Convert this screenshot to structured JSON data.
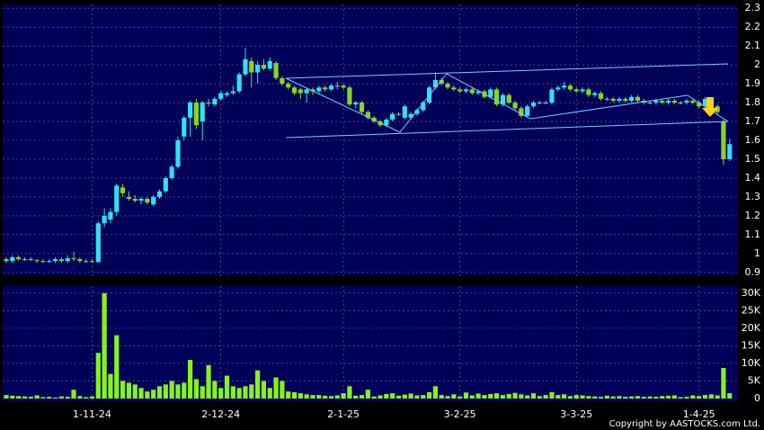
{
  "chart_data": {
    "type": "candlestick",
    "categories": [
      null,
      null,
      null,
      null,
      null,
      null,
      null,
      null,
      null,
      null,
      null,
      null,
      null,
      null,
      "1-11-24",
      null,
      null,
      null,
      null,
      null,
      null,
      null,
      null,
      null,
      null,
      null,
      null,
      null,
      null,
      null,
      null,
      null,
      null,
      null,
      null,
      "2-12-24",
      null,
      null,
      null,
      null,
      null,
      null,
      null,
      null,
      null,
      null,
      null,
      null,
      null,
      null,
      null,
      null,
      null,
      null,
      null,
      "2-1-25",
      null,
      null,
      null,
      null,
      null,
      null,
      null,
      null,
      null,
      null,
      null,
      null,
      null,
      null,
      null,
      null,
      null,
      null,
      "3-2-25",
      null,
      null,
      null,
      null,
      null,
      null,
      null,
      null,
      null,
      null,
      null,
      null,
      null,
      null,
      null,
      null,
      null,
      null,
      "3-3-25",
      null,
      null,
      null,
      null,
      null,
      null,
      null,
      null,
      null,
      null,
      null,
      null,
      null,
      null,
      null,
      null,
      null,
      null,
      null,
      "1-4-25",
      null,
      null,
      null,
      null,
      null
    ],
    "ohlc": [
      [
        0.97,
        0.98,
        0.95,
        0.96
      ],
      [
        0.96,
        0.99,
        0.95,
        0.98
      ],
      [
        0.98,
        0.99,
        0.96,
        0.97
      ],
      [
        0.97,
        0.98,
        0.96,
        0.97
      ],
      [
        0.97,
        0.98,
        0.96,
        0.965
      ],
      [
        0.965,
        0.97,
        0.95,
        0.96
      ],
      [
        0.96,
        0.97,
        0.95,
        0.955
      ],
      [
        0.955,
        0.97,
        0.95,
        0.96
      ],
      [
        0.96,
        0.98,
        0.95,
        0.97
      ],
      [
        0.97,
        0.98,
        0.95,
        0.96
      ],
      [
        0.96,
        0.99,
        0.95,
        0.975
      ],
      [
        0.975,
        1.01,
        0.96,
        0.97
      ],
      [
        0.97,
        0.98,
        0.95,
        0.96
      ],
      [
        0.96,
        0.97,
        0.95,
        0.955
      ],
      [
        0.96,
        0.97,
        0.95,
        0.955
      ],
      [
        0.955,
        1.17,
        0.95,
        1.16
      ],
      [
        1.16,
        1.24,
        1.14,
        1.2
      ],
      [
        1.18,
        1.24,
        1.16,
        1.22
      ],
      [
        1.22,
        1.37,
        1.2,
        1.36
      ],
      [
        1.35,
        1.37,
        1.3,
        1.32
      ],
      [
        1.3,
        1.33,
        1.28,
        1.29
      ],
      [
        1.29,
        1.31,
        1.27,
        1.28
      ],
      [
        1.28,
        1.3,
        1.26,
        1.29
      ],
      [
        1.29,
        1.3,
        1.26,
        1.27
      ],
      [
        1.26,
        1.31,
        1.25,
        1.3
      ],
      [
        1.3,
        1.34,
        1.29,
        1.33
      ],
      [
        1.33,
        1.41,
        1.32,
        1.4
      ],
      [
        1.4,
        1.47,
        1.39,
        1.46
      ],
      [
        1.46,
        1.62,
        1.45,
        1.6
      ],
      [
        1.62,
        1.73,
        1.6,
        1.72
      ],
      [
        1.72,
        1.81,
        1.62,
        1.8
      ],
      [
        1.8,
        1.82,
        1.66,
        1.68
      ],
      [
        1.7,
        1.81,
        1.6,
        1.8
      ],
      [
        1.8,
        1.82,
        1.78,
        1.8
      ],
      [
        1.79,
        1.83,
        1.78,
        1.82
      ],
      [
        1.82,
        1.86,
        1.81,
        1.85
      ],
      [
        1.84,
        1.86,
        1.83,
        1.85
      ],
      [
        1.85,
        1.89,
        1.84,
        1.86
      ],
      [
        1.86,
        1.96,
        1.85,
        1.95
      ],
      [
        1.95,
        2.09,
        1.94,
        2.03
      ],
      [
        2.02,
        2.04,
        1.88,
        1.96
      ],
      [
        1.96,
        2.02,
        1.9,
        2.0
      ],
      [
        2.0,
        2.03,
        1.97,
        1.98
      ],
      [
        1.98,
        2.04,
        1.97,
        2.02
      ],
      [
        2.01,
        2.02,
        1.92,
        1.93
      ],
      [
        1.93,
        1.94,
        1.89,
        1.9
      ],
      [
        1.9,
        1.91,
        1.87,
        1.88
      ],
      [
        1.88,
        1.89,
        1.84,
        1.85
      ],
      [
        1.87,
        1.88,
        1.82,
        1.85
      ],
      [
        1.85,
        1.88,
        1.8,
        1.87
      ],
      [
        1.87,
        1.88,
        1.84,
        1.86
      ],
      [
        1.86,
        1.89,
        1.85,
        1.88
      ],
      [
        1.88,
        1.89,
        1.86,
        1.87
      ],
      [
        1.87,
        1.9,
        1.86,
        1.89
      ],
      [
        1.89,
        1.91,
        1.87,
        1.89
      ],
      [
        1.89,
        1.9,
        1.87,
        1.88
      ],
      [
        1.88,
        1.89,
        1.78,
        1.79
      ],
      [
        1.79,
        1.81,
        1.77,
        1.8
      ],
      [
        1.8,
        1.81,
        1.74,
        1.75
      ],
      [
        1.75,
        1.76,
        1.71,
        1.72
      ],
      [
        1.72,
        1.73,
        1.69,
        1.7
      ],
      [
        1.7,
        1.71,
        1.67,
        1.68
      ],
      [
        1.68,
        1.72,
        1.67,
        1.71
      ],
      [
        1.71,
        1.75,
        1.7,
        1.74
      ],
      [
        1.74,
        1.75,
        1.73,
        1.74
      ],
      [
        1.72,
        1.79,
        1.71,
        1.78
      ],
      [
        1.72,
        1.75,
        1.71,
        1.74
      ],
      [
        1.74,
        1.77,
        1.73,
        1.76
      ],
      [
        1.76,
        1.81,
        1.75,
        1.8
      ],
      [
        1.8,
        1.89,
        1.79,
        1.88
      ],
      [
        1.88,
        1.96,
        1.87,
        1.92
      ],
      [
        1.92,
        1.93,
        1.89,
        1.9
      ],
      [
        1.9,
        1.91,
        1.87,
        1.88
      ],
      [
        1.88,
        1.89,
        1.86,
        1.87
      ],
      [
        1.87,
        1.88,
        1.85,
        1.86
      ],
      [
        1.86,
        1.88,
        1.85,
        1.87
      ],
      [
        1.87,
        1.88,
        1.84,
        1.85
      ],
      [
        1.85,
        1.87,
        1.84,
        1.86
      ],
      [
        1.86,
        1.87,
        1.82,
        1.83
      ],
      [
        1.83,
        1.88,
        1.82,
        1.87
      ],
      [
        1.87,
        1.88,
        1.78,
        1.79
      ],
      [
        1.79,
        1.85,
        1.78,
        1.84
      ],
      [
        1.84,
        1.85,
        1.79,
        1.8
      ],
      [
        1.8,
        1.81,
        1.76,
        1.77
      ],
      [
        1.77,
        1.78,
        1.72,
        1.73
      ],
      [
        1.73,
        1.79,
        1.72,
        1.78
      ],
      [
        1.78,
        1.81,
        1.77,
        1.8
      ],
      [
        1.8,
        1.81,
        1.79,
        1.8
      ],
      [
        1.8,
        1.81,
        1.79,
        1.8
      ],
      [
        1.8,
        1.88,
        1.79,
        1.87
      ],
      [
        1.87,
        1.89,
        1.86,
        1.88
      ],
      [
        1.88,
        1.91,
        1.87,
        1.89
      ],
      [
        1.89,
        1.9,
        1.86,
        1.87
      ],
      [
        1.87,
        1.88,
        1.85,
        1.86
      ],
      [
        1.86,
        1.88,
        1.85,
        1.87
      ],
      [
        1.87,
        1.88,
        1.83,
        1.84
      ],
      [
        1.84,
        1.86,
        1.83,
        1.85
      ],
      [
        1.85,
        1.86,
        1.81,
        1.82
      ],
      [
        1.82,
        1.83,
        1.81,
        1.82
      ],
      [
        1.82,
        1.83,
        1.8,
        1.81
      ],
      [
        1.81,
        1.83,
        1.8,
        1.82
      ],
      [
        1.82,
        1.83,
        1.8,
        1.81
      ],
      [
        1.81,
        1.84,
        1.8,
        1.83
      ],
      [
        1.83,
        1.84,
        1.8,
        1.81
      ],
      [
        1.81,
        1.82,
        1.79,
        1.8
      ],
      [
        1.8,
        1.81,
        1.79,
        1.8
      ],
      [
        1.8,
        1.82,
        1.79,
        1.81
      ],
      [
        1.81,
        1.82,
        1.79,
        1.8
      ],
      [
        1.8,
        1.82,
        1.79,
        1.81
      ],
      [
        1.81,
        1.82,
        1.79,
        1.8
      ],
      [
        1.8,
        1.81,
        1.79,
        1.8
      ],
      [
        1.8,
        1.82,
        1.79,
        1.81
      ],
      [
        1.81,
        1.82,
        1.79,
        1.8
      ],
      [
        1.8,
        1.81,
        1.77,
        1.78
      ],
      [
        1.78,
        1.83,
        1.77,
        1.82
      ],
      [
        1.82,
        1.83,
        1.77,
        1.78
      ],
      [
        1.78,
        1.79,
        1.74,
        1.75
      ],
      [
        1.7,
        1.71,
        1.47,
        1.5
      ],
      [
        1.5,
        1.61,
        1.49,
        1.58
      ]
    ],
    "volume": [
      1000,
      800,
      700,
      600,
      500,
      900,
      400,
      500,
      300,
      600,
      500,
      2500,
      700,
      400,
      600,
      13000,
      30000,
      7000,
      18000,
      5000,
      4500,
      4000,
      3000,
      2000,
      2500,
      3500,
      4000,
      5000,
      4000,
      4500,
      11000,
      5500,
      3500,
      9500,
      5000,
      3000,
      6500,
      3500,
      3000,
      3500,
      4000,
      8000,
      5000,
      3000,
      6000,
      5000,
      2000,
      1800,
      1500,
      1200,
      1000,
      1000,
      800,
      700,
      900,
      1500,
      3500,
      800,
      1000,
      2500,
      600,
      900,
      1300,
      1500,
      800,
      1100,
      1400,
      900,
      1000,
      1800,
      3500,
      1000,
      700,
      1200,
      600,
      1700,
      900,
      1400,
      1000,
      1300,
      1500,
      1000,
      1300,
      1600,
      1200,
      900,
      1500,
      700,
      1000,
      1800,
      1000,
      1200,
      700,
      1000,
      900,
      700,
      600,
      500,
      800,
      600,
      700,
      500,
      600,
      700,
      500,
      600,
      500,
      700,
      800,
      900,
      400,
      500,
      900,
      700,
      1000,
      1200,
      900,
      8700,
      1500
    ],
    "ylim": [
      0.88,
      2.32
    ],
    "yticks": [
      0.9,
      1,
      1.1,
      1.2,
      1.3,
      1.4,
      1.5,
      1.6,
      1.7,
      1.8,
      1.9,
      2,
      2.1,
      2.2,
      2.3
    ],
    "volume_ylim": [
      0,
      32000
    ],
    "volume_yticks": [
      0,
      {
        "value": 5000,
        "label": "5K"
      },
      {
        "value": 10000,
        "label": "10K"
      },
      {
        "value": 15000,
        "label": "15K"
      },
      {
        "value": 20000,
        "label": "20K"
      },
      {
        "value": 25000,
        "label": "25K"
      },
      {
        "value": 30000,
        "label": "30K"
      }
    ],
    "up_color": "#33e0ee",
    "down_color": "#86d623",
    "flat_color": "#b0b0b0",
    "volume_color": "#86f21f",
    "grid": true,
    "copyright": "Copyright by AASTOCKS.com Ltd."
  }
}
